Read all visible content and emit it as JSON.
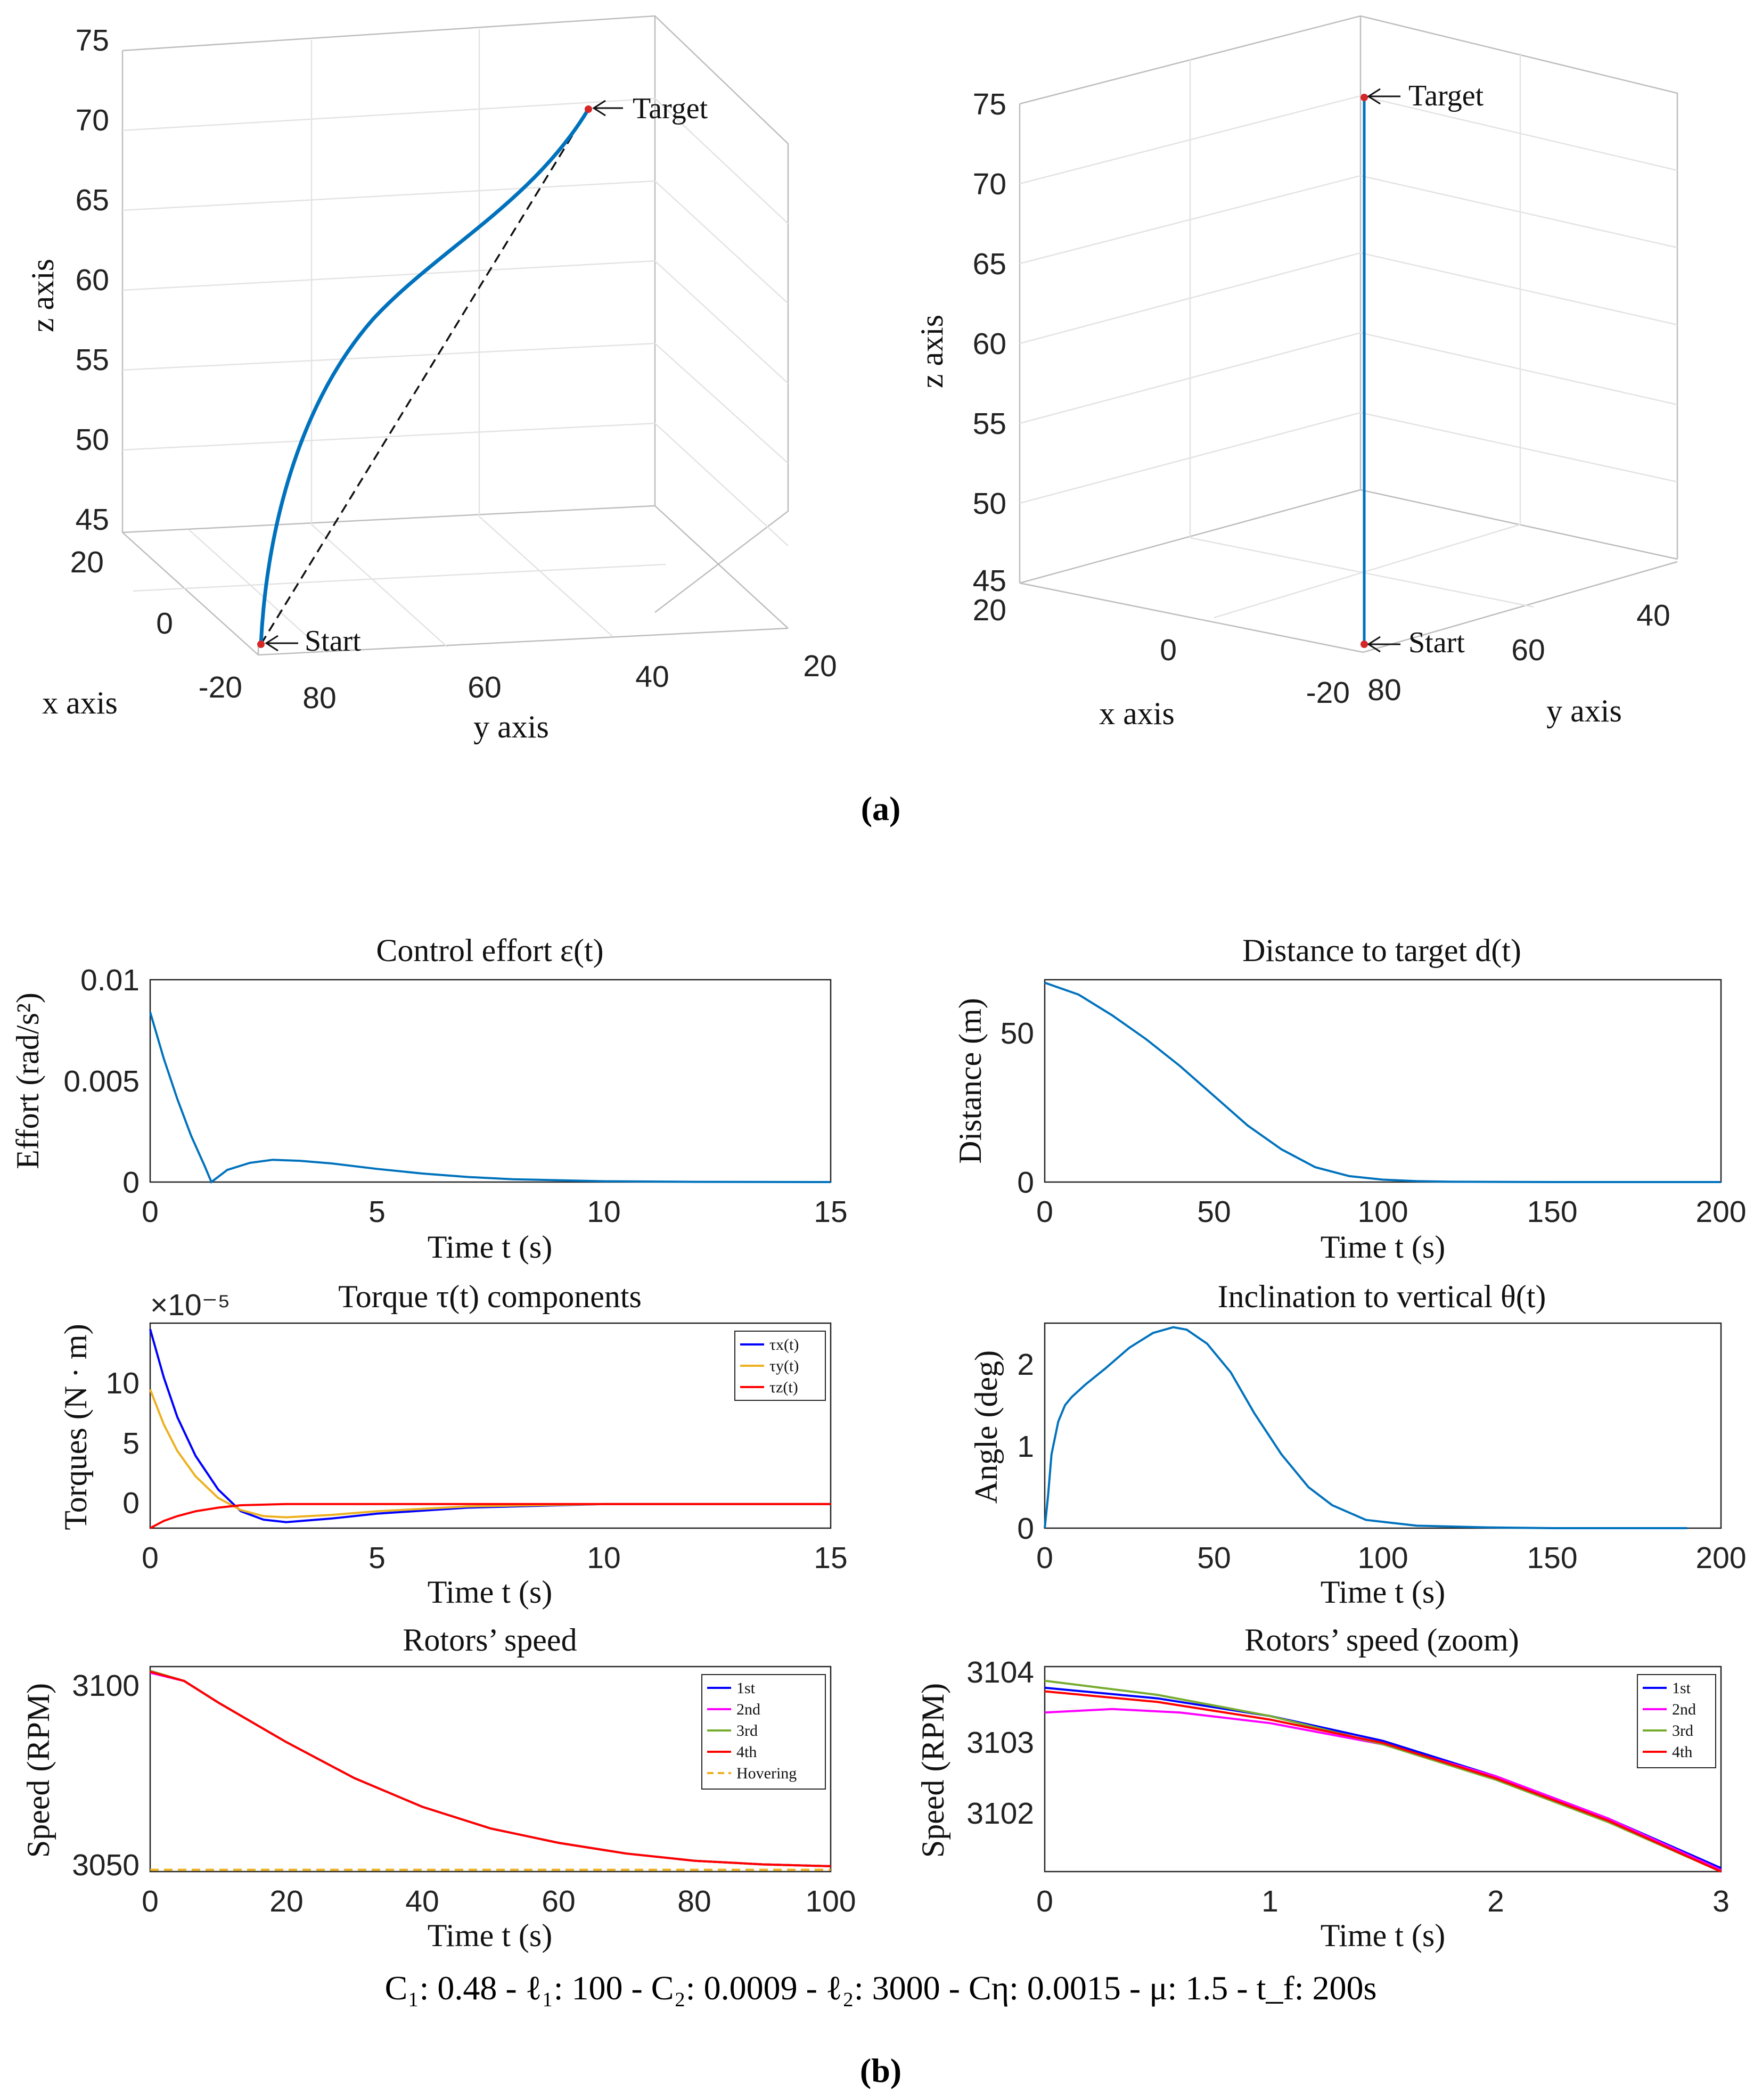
{
  "panel_a_label": "(a)",
  "panel_b_label": "(b)",
  "caption": "C₁: 0.48 - ℓ₁: 100 - C₂: 0.0009 - ℓ₂: 3000 - Cη: 0.0015 - μ: 1.5 - t_f: 200s",
  "colors": {
    "blue": "#0000ff",
    "orange": "#edb120",
    "red": "#ff0000",
    "magenta": "#ff00ff",
    "green": "#77ac30",
    "matlab_blue": "#0072bd",
    "axis": "#262626"
  },
  "chart_data": [
    {
      "type": "line",
      "kind": "3d-trajectory",
      "xlabel": "x axis",
      "ylabel": "y axis",
      "zlabel": "z axis",
      "xlim": [
        -20,
        20
      ],
      "ylim": [
        20,
        80
      ],
      "zlim": [
        45,
        75
      ],
      "x_ticks": [
        "20",
        "0",
        "-20"
      ],
      "y_ticks": [
        "80",
        "60",
        "40",
        "20"
      ],
      "z_ticks": [
        "75",
        "70",
        "65",
        "60",
        "55",
        "50",
        "45"
      ],
      "annotations": [
        "Start",
        "Target"
      ],
      "series": [
        {
          "x": [
            0,
            0,
            0,
            0,
            0,
            0,
            0,
            0,
            0
          ],
          "y": [
            80,
            70,
            61,
            54,
            48,
            44,
            41,
            39,
            38
          ],
          "z": [
            46,
            50,
            55,
            60,
            64,
            68,
            71,
            73,
            74
          ]
        },
        {
          "x": [
            0,
            0
          ],
          "y": [
            80,
            38
          ],
          "z": [
            46,
            74
          ]
        }
      ]
    },
    {
      "type": "line",
      "kind": "3d-trajectory-side",
      "xlabel": "x axis",
      "ylabel": "y axis",
      "zlabel": "z axis",
      "zlim": [
        45,
        75
      ],
      "x_ticks": [
        "20",
        "0",
        "-20"
      ],
      "y_ticks": [
        "80",
        "60",
        "40"
      ],
      "z_ticks": [
        "75",
        "70",
        "65",
        "60",
        "55",
        "50",
        "45"
      ],
      "annotations": [
        "Start",
        "Target"
      ],
      "series": [
        {
          "x": [
            0,
            0
          ],
          "y": [
            80,
            80
          ],
          "z": [
            46,
            75
          ]
        }
      ]
    },
    {
      "type": "line",
      "title": "Control effort ε(t)",
      "xlabel": "Time t (s)",
      "ylabel": "Effort (rad/s²)",
      "xlim": [
        0,
        15
      ],
      "ylim": [
        0,
        0.01
      ],
      "x_ticks": [
        "0",
        "5",
        "10",
        "15"
      ],
      "y_ticks": [
        "0",
        "0.005",
        "0.01"
      ],
      "series": [
        {
          "x": [
            0,
            0.3,
            0.6,
            0.9,
            1.2,
            1.35,
            1.7,
            2.2,
            2.7,
            3.3,
            4,
            5,
            6,
            7,
            8,
            10,
            12,
            15
          ],
          "y": [
            0.0084,
            0.0061,
            0.0041,
            0.0023,
            0.0008,
            0.0,
            0.0006,
            0.00095,
            0.0011,
            0.00105,
            0.00092,
            0.00065,
            0.00042,
            0.00025,
            0.00014,
            4e-05,
            1e-05,
            0.0
          ]
        }
      ]
    },
    {
      "type": "line",
      "title": "Distance to target d(t)",
      "xlabel": "Time t (s)",
      "ylabel": "Distance (m)",
      "xlim": [
        0,
        200
      ],
      "ylim": [
        0,
        68
      ],
      "x_ticks": [
        "0",
        "50",
        "100",
        "150",
        "200"
      ],
      "y_ticks": [
        "0",
        "50"
      ],
      "series": [
        {
          "x": [
            0,
            10,
            20,
            30,
            40,
            50,
            60,
            70,
            80,
            90,
            100,
            110,
            120,
            150,
            200
          ],
          "y": [
            67,
            63,
            56,
            48,
            39,
            29,
            19,
            11,
            5,
            2,
            0.8,
            0.3,
            0.1,
            0,
            0
          ]
        }
      ]
    },
    {
      "type": "line",
      "title": "Torque τ(t) components",
      "xlabel": "Time t (s)",
      "ylabel": "Torques (N · m)",
      "exponent_label": "×10⁻⁵",
      "xlim": [
        0,
        15
      ],
      "ylim": [
        -2,
        15
      ],
      "x_ticks": [
        "0",
        "5",
        "10",
        "15"
      ],
      "y_ticks": [
        "0",
        "5",
        "10"
      ],
      "series": [
        {
          "name": "τx(t)",
          "x": [
            0,
            0.3,
            0.6,
            1,
            1.5,
            2,
            2.5,
            3,
            4,
            5,
            7,
            10,
            15
          ],
          "y": [
            14.5,
            10.5,
            7.2,
            4,
            1.2,
            -0.6,
            -1.3,
            -1.5,
            -1.2,
            -0.8,
            -0.3,
            0,
            0
          ]
        },
        {
          "name": "τy(t)",
          "x": [
            0,
            0.3,
            0.6,
            1,
            1.5,
            2,
            2.5,
            3,
            4,
            5,
            7,
            10,
            15
          ],
          "y": [
            9.5,
            6.6,
            4.4,
            2.3,
            0.5,
            -0.5,
            -1.0,
            -1.1,
            -0.9,
            -0.6,
            -0.2,
            0,
            0
          ]
        },
        {
          "name": "τz(t)",
          "x": [
            0,
            0.3,
            0.6,
            1,
            1.5,
            2,
            3,
            4,
            5,
            7,
            10,
            15
          ],
          "y": [
            -2.0,
            -1.4,
            -1.0,
            -0.6,
            -0.3,
            -0.1,
            0,
            0,
            0,
            0,
            0,
            0
          ]
        }
      ],
      "legend_position": "top-right"
    },
    {
      "type": "line",
      "title": "Inclination to vertical θ(t)",
      "xlabel": "Time t (s)",
      "ylabel": "Angle (deg)",
      "xlim": [
        0,
        200
      ],
      "ylim": [
        0,
        2.5
      ],
      "x_ticks": [
        "0",
        "50",
        "100",
        "150",
        "200"
      ],
      "y_ticks": [
        "0",
        "1",
        "2"
      ],
      "series": [
        {
          "x": [
            0,
            1,
            2,
            4,
            6,
            8,
            12,
            18,
            25,
            32,
            38,
            42,
            48,
            55,
            62,
            70,
            78,
            85,
            95,
            110,
            130,
            150,
            190
          ],
          "y": [
            0,
            0.4,
            0.9,
            1.3,
            1.5,
            1.6,
            1.75,
            1.95,
            2.2,
            2.38,
            2.45,
            2.42,
            2.25,
            1.9,
            1.4,
            0.9,
            0.5,
            0.28,
            0.1,
            0.03,
            0.01,
            0,
            0
          ]
        }
      ]
    },
    {
      "type": "line",
      "title": "Rotors’ speed",
      "xlabel": "Time t (s)",
      "ylabel": "Speed (RPM)",
      "xlim": [
        0,
        100
      ],
      "ylim": [
        3048,
        3105
      ],
      "x_ticks": [
        "0",
        "20",
        "40",
        "60",
        "80",
        "100"
      ],
      "y_ticks": [
        "3050",
        "3100"
      ],
      "series": [
        {
          "name": "1st",
          "x": [
            0,
            5,
            10,
            20,
            30,
            40,
            50,
            60,
            70,
            80,
            90,
            100
          ],
          "y": [
            3103.7,
            3101,
            3095,
            3084,
            3074,
            3066,
            3060,
            3056,
            3053,
            3051,
            3050,
            3049.5
          ]
        },
        {
          "name": "2nd",
          "x": [
            0,
            5,
            10,
            20,
            30,
            40,
            50,
            60,
            70,
            80,
            90,
            100
          ],
          "y": [
            3103.3,
            3101,
            3095,
            3084,
            3074,
            3066,
            3060,
            3056,
            3053,
            3051,
            3050,
            3049.5
          ]
        },
        {
          "name": "3rd",
          "x": [
            0,
            5,
            10,
            20,
            30,
            40,
            50,
            60,
            70,
            80,
            90,
            100
          ],
          "y": [
            3103.8,
            3101,
            3095,
            3084,
            3074,
            3066,
            3060,
            3056,
            3053,
            3051,
            3050,
            3049.5
          ]
        },
        {
          "name": "4th",
          "x": [
            0,
            5,
            10,
            20,
            30,
            40,
            50,
            60,
            70,
            80,
            90,
            100
          ],
          "y": [
            3103.6,
            3101,
            3095,
            3084,
            3074,
            3066,
            3060,
            3056,
            3053,
            3051,
            3050,
            3049.5
          ]
        },
        {
          "name": "Hovering",
          "x": [
            0,
            100
          ],
          "y": [
            3048.5,
            3048.5
          ]
        }
      ],
      "legend_position": "top-right"
    },
    {
      "type": "line",
      "title": "Rotors’ speed (zoom)",
      "xlabel": "Time t (s)",
      "ylabel": "Speed (RPM)",
      "xlim": [
        0,
        3
      ],
      "ylim": [
        3101.1,
        3104
      ],
      "x_ticks": [
        "0",
        "1",
        "2",
        "3"
      ],
      "y_ticks": [
        "3102",
        "3103",
        "3104"
      ],
      "series": [
        {
          "name": "1st",
          "x": [
            0,
            0.5,
            1,
            1.5,
            2,
            2.5,
            3
          ],
          "y": [
            3103.7,
            3103.55,
            3103.3,
            3102.95,
            3102.45,
            3101.85,
            3101.15
          ]
        },
        {
          "name": "2nd",
          "x": [
            0,
            0.3,
            0.6,
            1,
            1.5,
            2,
            2.5,
            3
          ],
          "y": [
            3103.35,
            3103.4,
            3103.35,
            3103.2,
            3102.9,
            3102.45,
            3101.85,
            3101.12
          ]
        },
        {
          "name": "3rd",
          "x": [
            0,
            0.5,
            1,
            1.5,
            2,
            2.5,
            3
          ],
          "y": [
            3103.8,
            3103.6,
            3103.3,
            3102.9,
            3102.4,
            3101.8,
            3101.1
          ]
        },
        {
          "name": "4th",
          "x": [
            0,
            0.5,
            1,
            1.5,
            2,
            2.5,
            3
          ],
          "y": [
            3103.65,
            3103.5,
            3103.25,
            3102.92,
            3102.42,
            3101.82,
            3101.1
          ]
        }
      ],
      "legend_position": "top-right"
    }
  ]
}
